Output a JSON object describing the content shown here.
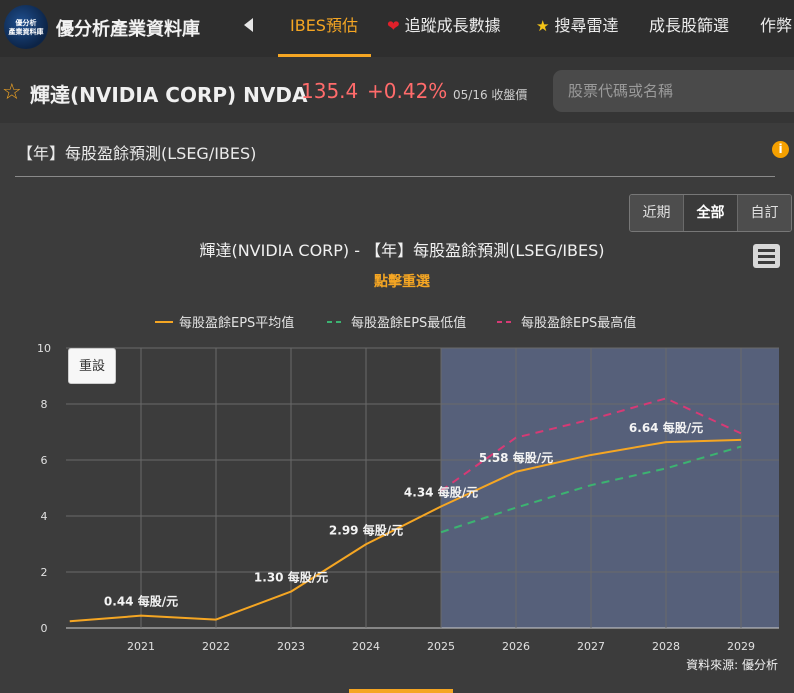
{
  "logo": {
    "line1": "優分析",
    "line2": "產業資料庫"
  },
  "site_title": "優分析產業資料庫",
  "nav": {
    "items": [
      {
        "label": "IBES預估",
        "active": true
      },
      {
        "label": "追蹤成長數據",
        "icon": "heart-icon"
      },
      {
        "label": "搜尋雷達",
        "icon": "star-icon"
      },
      {
        "label": "成長股篩選"
      },
      {
        "label": "作弊"
      }
    ]
  },
  "stock": {
    "name": "輝達(NVIDIA CORP) NVDA",
    "price": "135.4",
    "change": "+0.42%",
    "date": "05/16 收盤價"
  },
  "search": {
    "placeholder": "股票代碼或名稱"
  },
  "panel": {
    "title": "【年】每股盈餘預測(LSEG/IBES)",
    "info": "i"
  },
  "range": {
    "buttons": [
      "近期",
      "全部",
      "自訂"
    ],
    "selected": "全部"
  },
  "reset_label": "重設",
  "chart_data": {
    "type": "line",
    "title": "輝達(NVIDIA CORP) - 【年】每股盈餘預測(LSEG/IBES)",
    "subtitle": "點擊重選",
    "credit": "資料來源: 優分析",
    "x": [
      2020.05,
      2021,
      2022,
      2023,
      2024,
      2025,
      2026,
      2027,
      2028,
      2029
    ],
    "xticks": [
      "2021",
      "2022",
      "2023",
      "2024",
      "2025",
      "2026",
      "2027",
      "2028",
      "2029"
    ],
    "ylim": [
      0,
      10
    ],
    "yticks": [
      "0",
      "2",
      "4",
      "6",
      "8",
      "10"
    ],
    "forecast_band": [
      2025,
      2029.5
    ],
    "grid": true,
    "legend_position": "top-center",
    "series": [
      {
        "name": "每股盈餘EPS平均值",
        "color": "#f5a623",
        "dash": false,
        "x": [
          2020.05,
          2021,
          2022,
          2023,
          2024,
          2025,
          2026,
          2027,
          2028,
          2029
        ],
        "values": [
          0.24,
          0.44,
          0.3,
          1.3,
          2.99,
          4.34,
          5.58,
          6.18,
          6.64,
          6.72
        ]
      },
      {
        "name": "每股盈餘EPS最低值",
        "color": "#3cb371",
        "dash": true,
        "x": [
          2025,
          2026,
          2027,
          2028,
          2029
        ],
        "values": [
          3.42,
          4.3,
          5.1,
          5.7,
          6.48
        ]
      },
      {
        "name": "每股盈餘EPS最高值",
        "color": "#d63a75",
        "dash": true,
        "x": [
          2025,
          2026,
          2027,
          2028,
          2029
        ],
        "values": [
          4.9,
          6.8,
          7.45,
          8.2,
          6.95
        ]
      }
    ],
    "data_labels": [
      {
        "x": 2021,
        "y": 0.44,
        "text": "0.44 每股/元"
      },
      {
        "x": 2023,
        "y": 1.3,
        "text": "1.30 每股/元"
      },
      {
        "x": 2024,
        "y": 2.99,
        "text": "2.99 每股/元"
      },
      {
        "x": 2025,
        "y": 4.34,
        "text": "4.34 每股/元"
      },
      {
        "x": 2026,
        "y": 5.58,
        "text": "5.58 每股/元"
      },
      {
        "x": 2028,
        "y": 6.64,
        "text": "6.64 每股/元"
      }
    ]
  }
}
